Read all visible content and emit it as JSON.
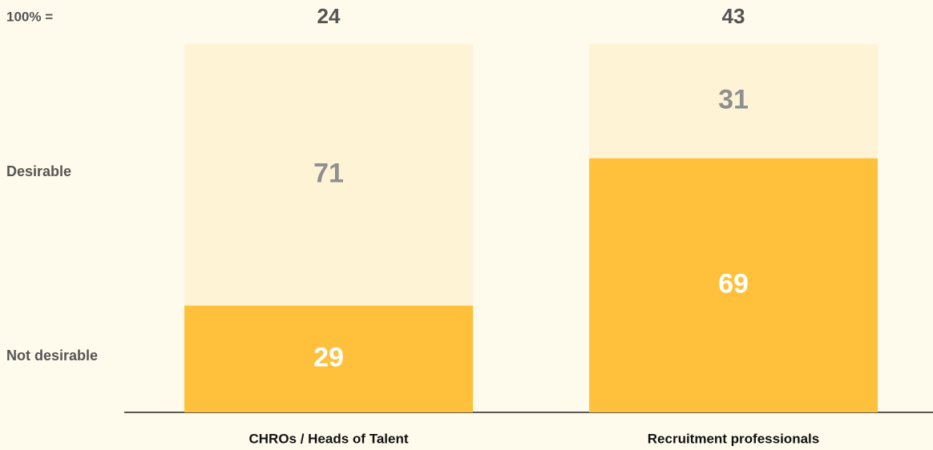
{
  "chart_data": {
    "type": "stacked_bar",
    "categories": [
      "CHROs / Heads of Talent",
      "Recruitment professionals"
    ],
    "series": [
      {
        "name": "Not desirable",
        "color": "#ffc13b",
        "label_color": "#ffffff",
        "values": [
          29,
          69
        ]
      },
      {
        "name": "Desirable",
        "color": "#fff3d6",
        "label_color": "#8f8f8f",
        "values": [
          71,
          31
        ]
      }
    ],
    "totals": {
      "label": "100% =",
      "values": [
        24,
        43
      ]
    },
    "ylim": [
      0,
      100
    ]
  }
}
